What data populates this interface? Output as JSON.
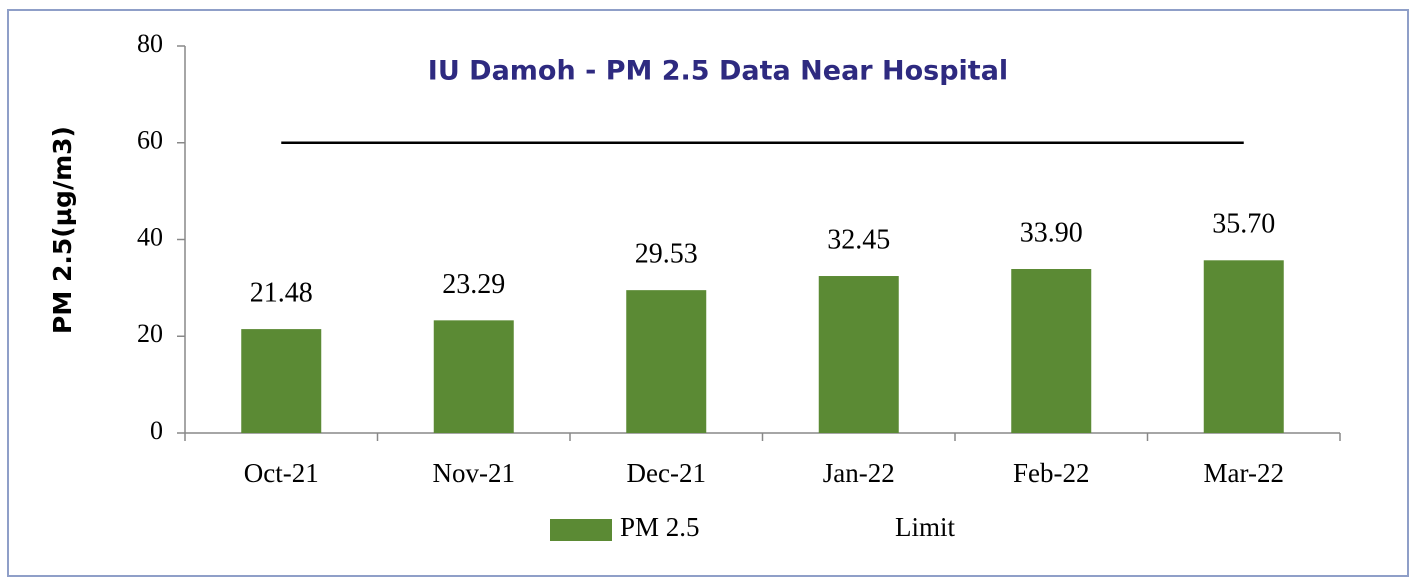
{
  "chart_data": {
    "type": "bar",
    "title": "IU Damoh - PM 2.5 Data  Near Hospital",
    "y_label": "PM 2.5(µg/m3)",
    "categories": [
      "Oct-21",
      "Nov-21",
      "Dec-21",
      "Jan-22",
      "Feb-22",
      "Mar-22"
    ],
    "series": [
      {
        "name": "PM 2.5",
        "type": "bar",
        "color": "#5b8a34",
        "values": [
          21.48,
          23.29,
          29.53,
          32.45,
          33.9,
          35.7
        ],
        "value_labels": [
          "21.48",
          "23.29",
          "29.53",
          "32.45",
          "33.90",
          "35.70"
        ]
      },
      {
        "name": "Limit",
        "type": "line",
        "color": "#000000",
        "values": [
          60,
          60,
          60,
          60,
          60,
          60
        ]
      }
    ],
    "ylim": [
      0,
      80
    ],
    "yticks": [
      0,
      20,
      40,
      60,
      80
    ],
    "grid": false
  }
}
